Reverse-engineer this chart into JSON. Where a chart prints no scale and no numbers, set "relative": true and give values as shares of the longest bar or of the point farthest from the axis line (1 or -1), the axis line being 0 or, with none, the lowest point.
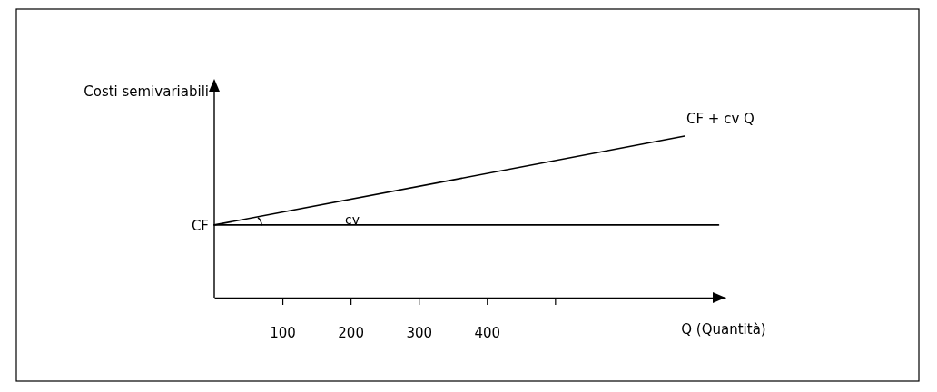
{
  "chart_data": {
    "type": "line",
    "relative": true,
    "xlabel": "Q (Quantità)",
    "ylabel": "Costi semivariabili",
    "xlim": [
      0,
      750
    ],
    "xticks": [
      100,
      200,
      300,
      400,
      {
        "value": 500,
        "label": null
      }
    ],
    "series": [
      {
        "name": "CF + cv Q",
        "color": "#000000",
        "x": [
          0,
          690
        ],
        "values": [
          0.45,
          1
        ]
      },
      {
        "name": "CF",
        "color": "#000000",
        "x": [
          0,
          740
        ],
        "values": [
          0.45,
          0.45
        ]
      }
    ],
    "annotations": [
      "cv"
    ]
  }
}
